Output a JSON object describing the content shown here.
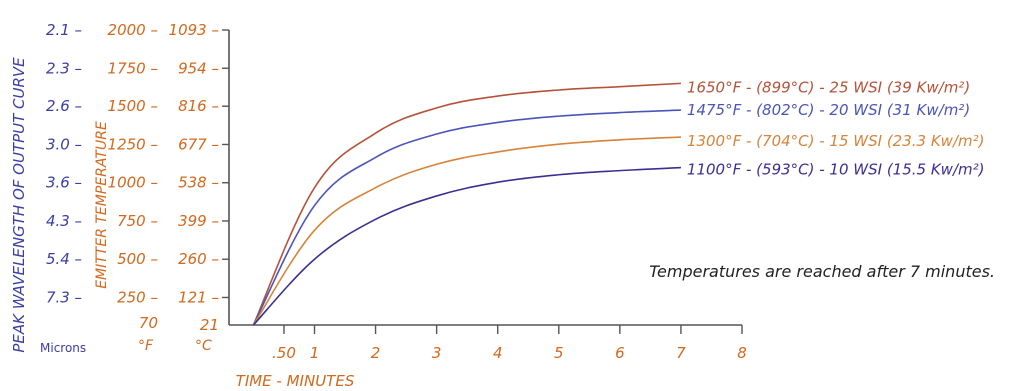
{
  "colors": {
    "blue": "#3b3fa3",
    "orange": "#d2691e",
    "axis": "#555555",
    "series": [
      "#b5533a",
      "#4b55b8",
      "#d7843a",
      "#3c2f93"
    ]
  },
  "chart_data": {
    "type": "line",
    "x_values": [
      0,
      1,
      2,
      3,
      4,
      5,
      6,
      7
    ],
    "x_ticks": [
      {
        "value": 0.5,
        "label": ".50"
      },
      {
        "value": 1,
        "label": "1"
      },
      {
        "value": 2,
        "label": "2"
      },
      {
        "value": 3,
        "label": "3"
      },
      {
        "value": 4,
        "label": "4"
      },
      {
        "value": 5,
        "label": "5"
      },
      {
        "value": 6,
        "label": "6"
      },
      {
        "value": 7,
        "label": "7"
      },
      {
        "value": 8,
        "label": "8"
      }
    ],
    "xlim": [
      -0.4,
      8
    ],
    "xlabel": "TIME - MINUTES",
    "y_axes": {
      "celsius": {
        "unit_label": "°C",
        "range": [
          21,
          1093
        ],
        "ticks": [
          21,
          121,
          260,
          399,
          538,
          677,
          816,
          954,
          1093
        ],
        "tick_labels": [
          "21",
          "121",
          "260",
          "399",
          "538",
          "677",
          "816",
          "954",
          "1093"
        ]
      },
      "fahrenheit": {
        "unit_label": "°F",
        "title": "EMITTER TEMPERATURE",
        "ticks": [
          "70",
          "250",
          "500",
          "750",
          "1000",
          "1250",
          "1500",
          "1750",
          "2000"
        ]
      },
      "microns": {
        "unit_label": "Microns",
        "title": "PEAK WAVELENGTH OF OUTPUT CURVE",
        "ticks": [
          "",
          "7.3",
          "5.4",
          "4.3",
          "3.6",
          "3.0",
          "2.6",
          "2.3",
          "2.1"
        ]
      }
    },
    "series": [
      {
        "name": "1650°F - (899°C) - 25 WSI (39 Kw/m²)",
        "color_index": 0,
        "y": [
          21,
          520,
          718,
          810,
          853,
          875,
          887,
          899
        ]
      },
      {
        "name": "1475°F - (802°C) - 20 WSI (31 Kw/m²)",
        "color_index": 1,
        "y": [
          21,
          455,
          630,
          715,
          757,
          780,
          793,
          802
        ]
      },
      {
        "name": "1300°F - (704°C) - 15 WSI (23.3 Kw/m²)",
        "color_index": 2,
        "y": [
          21,
          365,
          520,
          605,
          650,
          678,
          694,
          704
        ]
      },
      {
        "name": "1100°F - (593°C) - 10 WSI (15.5 Kw/m²)",
        "color_index": 3,
        "y": [
          21,
          260,
          405,
          490,
          540,
          567,
          582,
          593
        ]
      }
    ],
    "annotations": [
      "Temperatures are reached after 7 minutes."
    ],
    "grid": false
  }
}
